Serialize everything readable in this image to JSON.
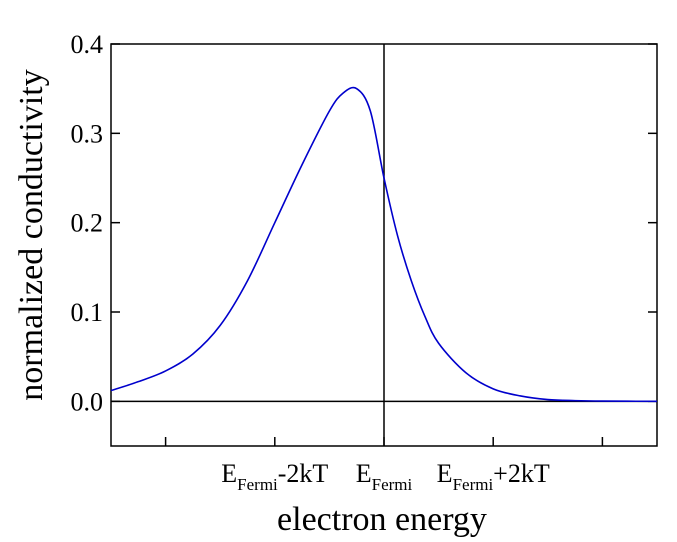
{
  "chart_data": {
    "type": "line",
    "title": "",
    "xlabel": "electron energy",
    "ylabel": "normalized conductivity",
    "xlim": [
      -5,
      5
    ],
    "ylim": [
      -0.05,
      0.4
    ],
    "grid": false,
    "legend": "none",
    "y_ticks": [
      {
        "value": 0.0,
        "label": "0.0"
      },
      {
        "value": 0.1,
        "label": "0.1"
      },
      {
        "value": 0.2,
        "label": "0.2"
      },
      {
        "value": 0.3,
        "label": "0.3"
      },
      {
        "value": 0.4,
        "label": "0.4"
      }
    ],
    "x_ticks": [
      -4,
      -2,
      0,
      2,
      4
    ],
    "x_tick_labels": [
      {
        "value": -2,
        "main": "E",
        "sub": "Fermi",
        "suffix": "-2kT"
      },
      {
        "value": 0,
        "main": "E",
        "sub": "Fermi",
        "suffix": ""
      },
      {
        "value": 2,
        "main": "E",
        "sub": "Fermi",
        "suffix": "+2kT"
      }
    ],
    "reference_lines": {
      "vertical_x": 0,
      "horizontal_y": 0
    },
    "series": [
      {
        "color": "#0000cc",
        "x": [
          -5.0,
          -4.5,
          -4.0,
          -3.5,
          -3.0,
          -2.5,
          -2.0,
          -1.5,
          -1.0,
          -0.75,
          -0.5,
          -0.25,
          0.0,
          0.25,
          0.5,
          0.75,
          1.0,
          1.5,
          2.0,
          2.5,
          3.0,
          3.5,
          4.0,
          5.0
        ],
        "y": [
          0.012,
          0.022,
          0.034,
          0.053,
          0.085,
          0.135,
          0.2,
          0.265,
          0.325,
          0.345,
          0.35,
          0.325,
          0.25,
          0.185,
          0.135,
          0.095,
          0.065,
          0.032,
          0.014,
          0.006,
          0.002,
          0.0008,
          0.0003,
          0.0
        ]
      }
    ]
  }
}
